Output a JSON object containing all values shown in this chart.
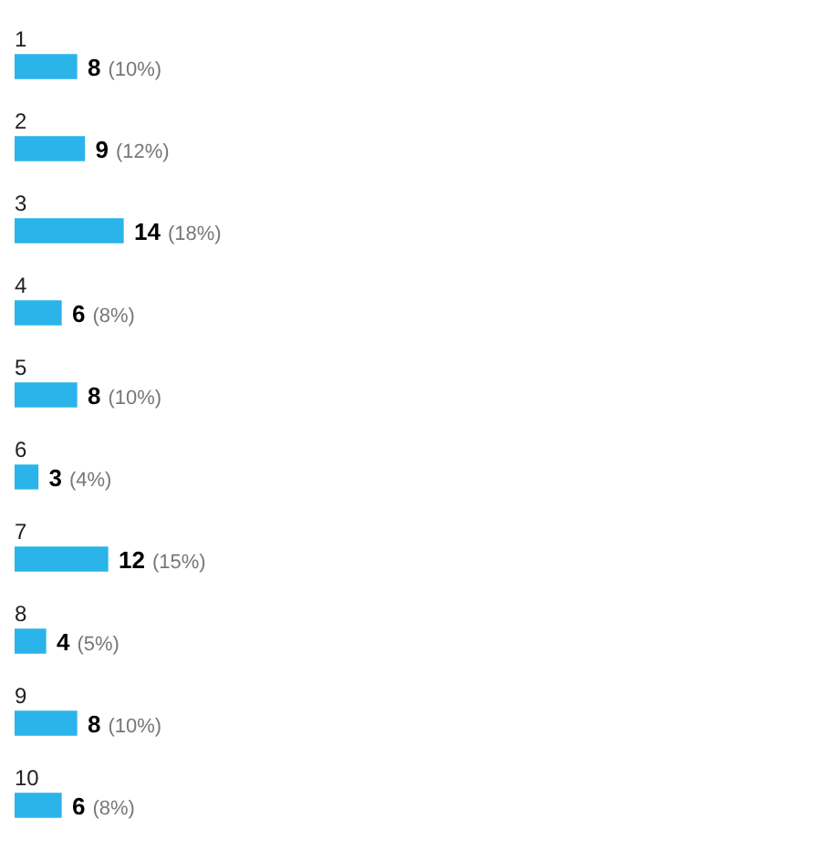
{
  "chart_data": {
    "type": "bar",
    "orientation": "horizontal",
    "categories": [
      "1",
      "2",
      "3",
      "4",
      "5",
      "6",
      "7",
      "8",
      "9",
      "10"
    ],
    "values": [
      8,
      9,
      14,
      6,
      8,
      3,
      12,
      4,
      8,
      6
    ],
    "value_labels": [
      "8 (10%)",
      "9 (12%)",
      "14 (18%)",
      "6 (8%)",
      "8 (10%)",
      "3 (4%)",
      "12 (15%)",
      "4 (5%)",
      "8 (10%)",
      "6 (8%)"
    ],
    "color": "#2bb4ea",
    "legend": false,
    "tick_labels": false
  }
}
